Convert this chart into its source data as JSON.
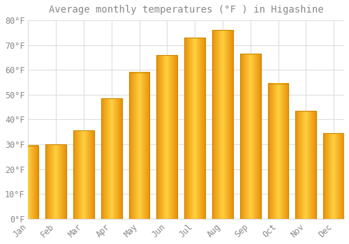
{
  "title": "Average monthly temperatures (°F ) in Higashine",
  "months": [
    "Jan",
    "Feb",
    "Mar",
    "Apr",
    "May",
    "Jun",
    "Jul",
    "Aug",
    "Sep",
    "Oct",
    "Nov",
    "Dec"
  ],
  "values": [
    29.5,
    30.0,
    35.5,
    48.5,
    59.0,
    66.0,
    73.0,
    76.0,
    66.5,
    54.5,
    43.5,
    34.5
  ],
  "bar_color": "#FFBB33",
  "bar_edge_color": "#CC8800",
  "background_color": "#FFFFFF",
  "grid_color": "#DDDDDD",
  "text_color": "#888888",
  "ylim": [
    0,
    80
  ],
  "yticks": [
    0,
    10,
    20,
    30,
    40,
    50,
    60,
    70,
    80
  ],
  "title_fontsize": 10,
  "tick_fontsize": 8.5
}
